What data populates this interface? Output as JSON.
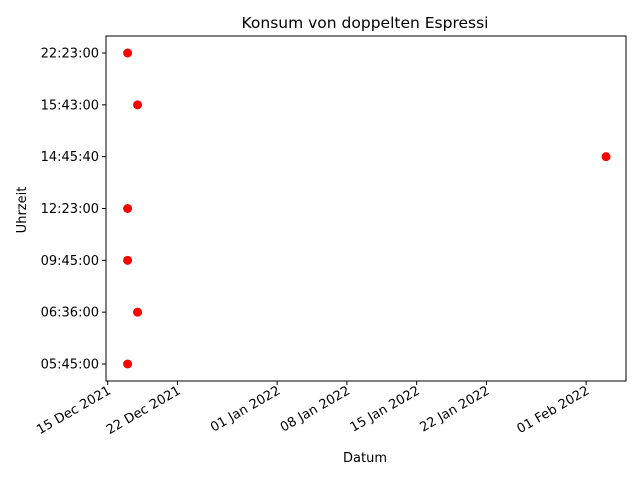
{
  "chart_data": {
    "type": "scatter",
    "title": "Konsum von doppelten Espressi",
    "xlabel": "Datum",
    "ylabel": "Uhrzeit",
    "marker_color": "#ff0000",
    "grid": false,
    "x_ticks": [
      {
        "date": "2021-12-15",
        "label": "15 Dec 2021"
      },
      {
        "date": "2021-12-22",
        "label": "22 Dec 2021"
      },
      {
        "date": "2022-01-01",
        "label": "01 Jan 2022"
      },
      {
        "date": "2022-01-08",
        "label": "08 Jan 2022"
      },
      {
        "date": "2022-01-15",
        "label": "15 Jan 2022"
      },
      {
        "date": "2022-01-22",
        "label": "22 Jan 2022"
      },
      {
        "date": "2022-02-01",
        "label": "01 Feb 2022"
      }
    ],
    "xlim": [
      "2021-12-14T20:00",
      "2022-02-05T00:00"
    ],
    "y_categories": [
      "05:45:00",
      "06:36:00",
      "09:45:00",
      "12:23:00",
      "14:45:40",
      "15:43:00",
      "22:23:00"
    ],
    "points": [
      {
        "x": "2021-12-17",
        "y": "22:23:00"
      },
      {
        "x": "2021-12-18",
        "y": "15:43:00"
      },
      {
        "x": "2022-02-03",
        "y": "14:45:40"
      },
      {
        "x": "2021-12-17",
        "y": "12:23:00"
      },
      {
        "x": "2021-12-17",
        "y": "09:45:00"
      },
      {
        "x": "2021-12-18",
        "y": "06:36:00"
      },
      {
        "x": "2021-12-17",
        "y": "05:45:00"
      }
    ]
  }
}
